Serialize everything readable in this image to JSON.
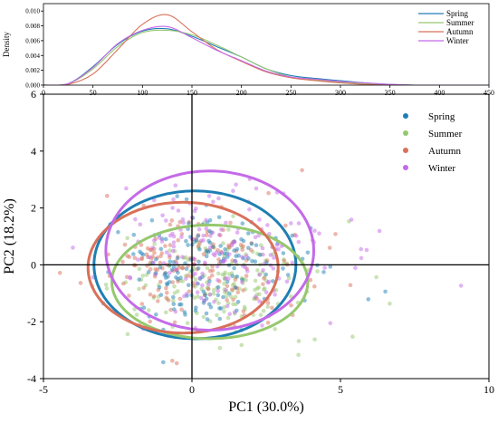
{
  "colors": {
    "spring": "#1f7fb4",
    "summer": "#96c86e",
    "autumn": "#d9705a",
    "winter": "#c46ae8",
    "axis": "#000000"
  },
  "chart_data": [
    {
      "type": "line",
      "panel": "density",
      "ylabel": "Density",
      "xlim": [
        0,
        450
      ],
      "ylim": [
        0,
        0.011
      ],
      "x_ticks": [
        "0",
        "50",
        "100",
        "150",
        "200",
        "250",
        "300",
        "350",
        "400",
        "450"
      ],
      "y_ticks": [
        "0.000",
        "0.002",
        "0.004",
        "0.006",
        "0.008",
        "0.010"
      ],
      "legend_position": "top-right",
      "x": [
        0,
        25,
        50,
        75,
        100,
        125,
        150,
        175,
        200,
        225,
        250,
        275,
        300,
        325,
        350,
        375,
        400,
        425,
        450
      ],
      "series": [
        {
          "name": "Spring",
          "color_key": "spring",
          "values": [
            0.0,
            0.0002,
            0.0025,
            0.0055,
            0.0073,
            0.0076,
            0.0066,
            0.0052,
            0.0038,
            0.0022,
            0.0013,
            0.0009,
            0.0006,
            0.0003,
            0.0001,
            0.0,
            0.0,
            0.0,
            0.0
          ]
        },
        {
          "name": "Summer",
          "color_key": "summer",
          "values": [
            0.0,
            0.0002,
            0.0022,
            0.0052,
            0.0071,
            0.0074,
            0.0068,
            0.0054,
            0.0038,
            0.0022,
            0.0011,
            0.0007,
            0.0004,
            0.0002,
            0.0001,
            0.0,
            0.0,
            0.0,
            0.0
          ]
        },
        {
          "name": "Autumn",
          "color_key": "autumn",
          "values": [
            0.0,
            0.0001,
            0.0015,
            0.0048,
            0.0082,
            0.0095,
            0.0072,
            0.0048,
            0.0032,
            0.0018,
            0.001,
            0.0006,
            0.0003,
            0.0001,
            0.0,
            0.0,
            0.0,
            0.0,
            0.0
          ]
        },
        {
          "name": "Winter",
          "color_key": "winter",
          "values": [
            0.0,
            0.0002,
            0.0024,
            0.0056,
            0.0074,
            0.0079,
            0.0064,
            0.0047,
            0.0033,
            0.0019,
            0.0011,
            0.0008,
            0.0005,
            0.0003,
            0.0001,
            0.0,
            0.0,
            0.0,
            0.0
          ]
        }
      ]
    },
    {
      "type": "scatter",
      "panel": "pca",
      "xlabel": "PC1 (30.0%)",
      "ylabel": "PC2 (18.2%)",
      "xlim": [
        -5,
        10
      ],
      "ylim": [
        -4,
        6
      ],
      "x_ticks": [
        "-5",
        "0",
        "5",
        "10"
      ],
      "y_ticks": [
        "-4",
        "-2",
        "0",
        "2",
        "4",
        "6"
      ],
      "grid": false,
      "legend_position": "top-right",
      "series": [
        {
          "name": "Spring",
          "color_key": "spring",
          "ellipse": {
            "cx": 0.1,
            "cy": 0.0,
            "rx": 3.4,
            "ry": 2.6
          }
        },
        {
          "name": "Summer",
          "color_key": "summer",
          "ellipse": {
            "cx": 0.6,
            "cy": -0.6,
            "rx": 3.3,
            "ry": 2.0
          }
        },
        {
          "name": "Autumn",
          "color_key": "autumn",
          "ellipse": {
            "cx": -0.3,
            "cy": -0.1,
            "rx": 3.2,
            "ry": 2.3
          }
        },
        {
          "name": "Winter",
          "color_key": "winter",
          "ellipse": {
            "cx": 0.6,
            "cy": 0.5,
            "rx": 3.5,
            "ry": 2.8
          }
        }
      ]
    }
  ]
}
